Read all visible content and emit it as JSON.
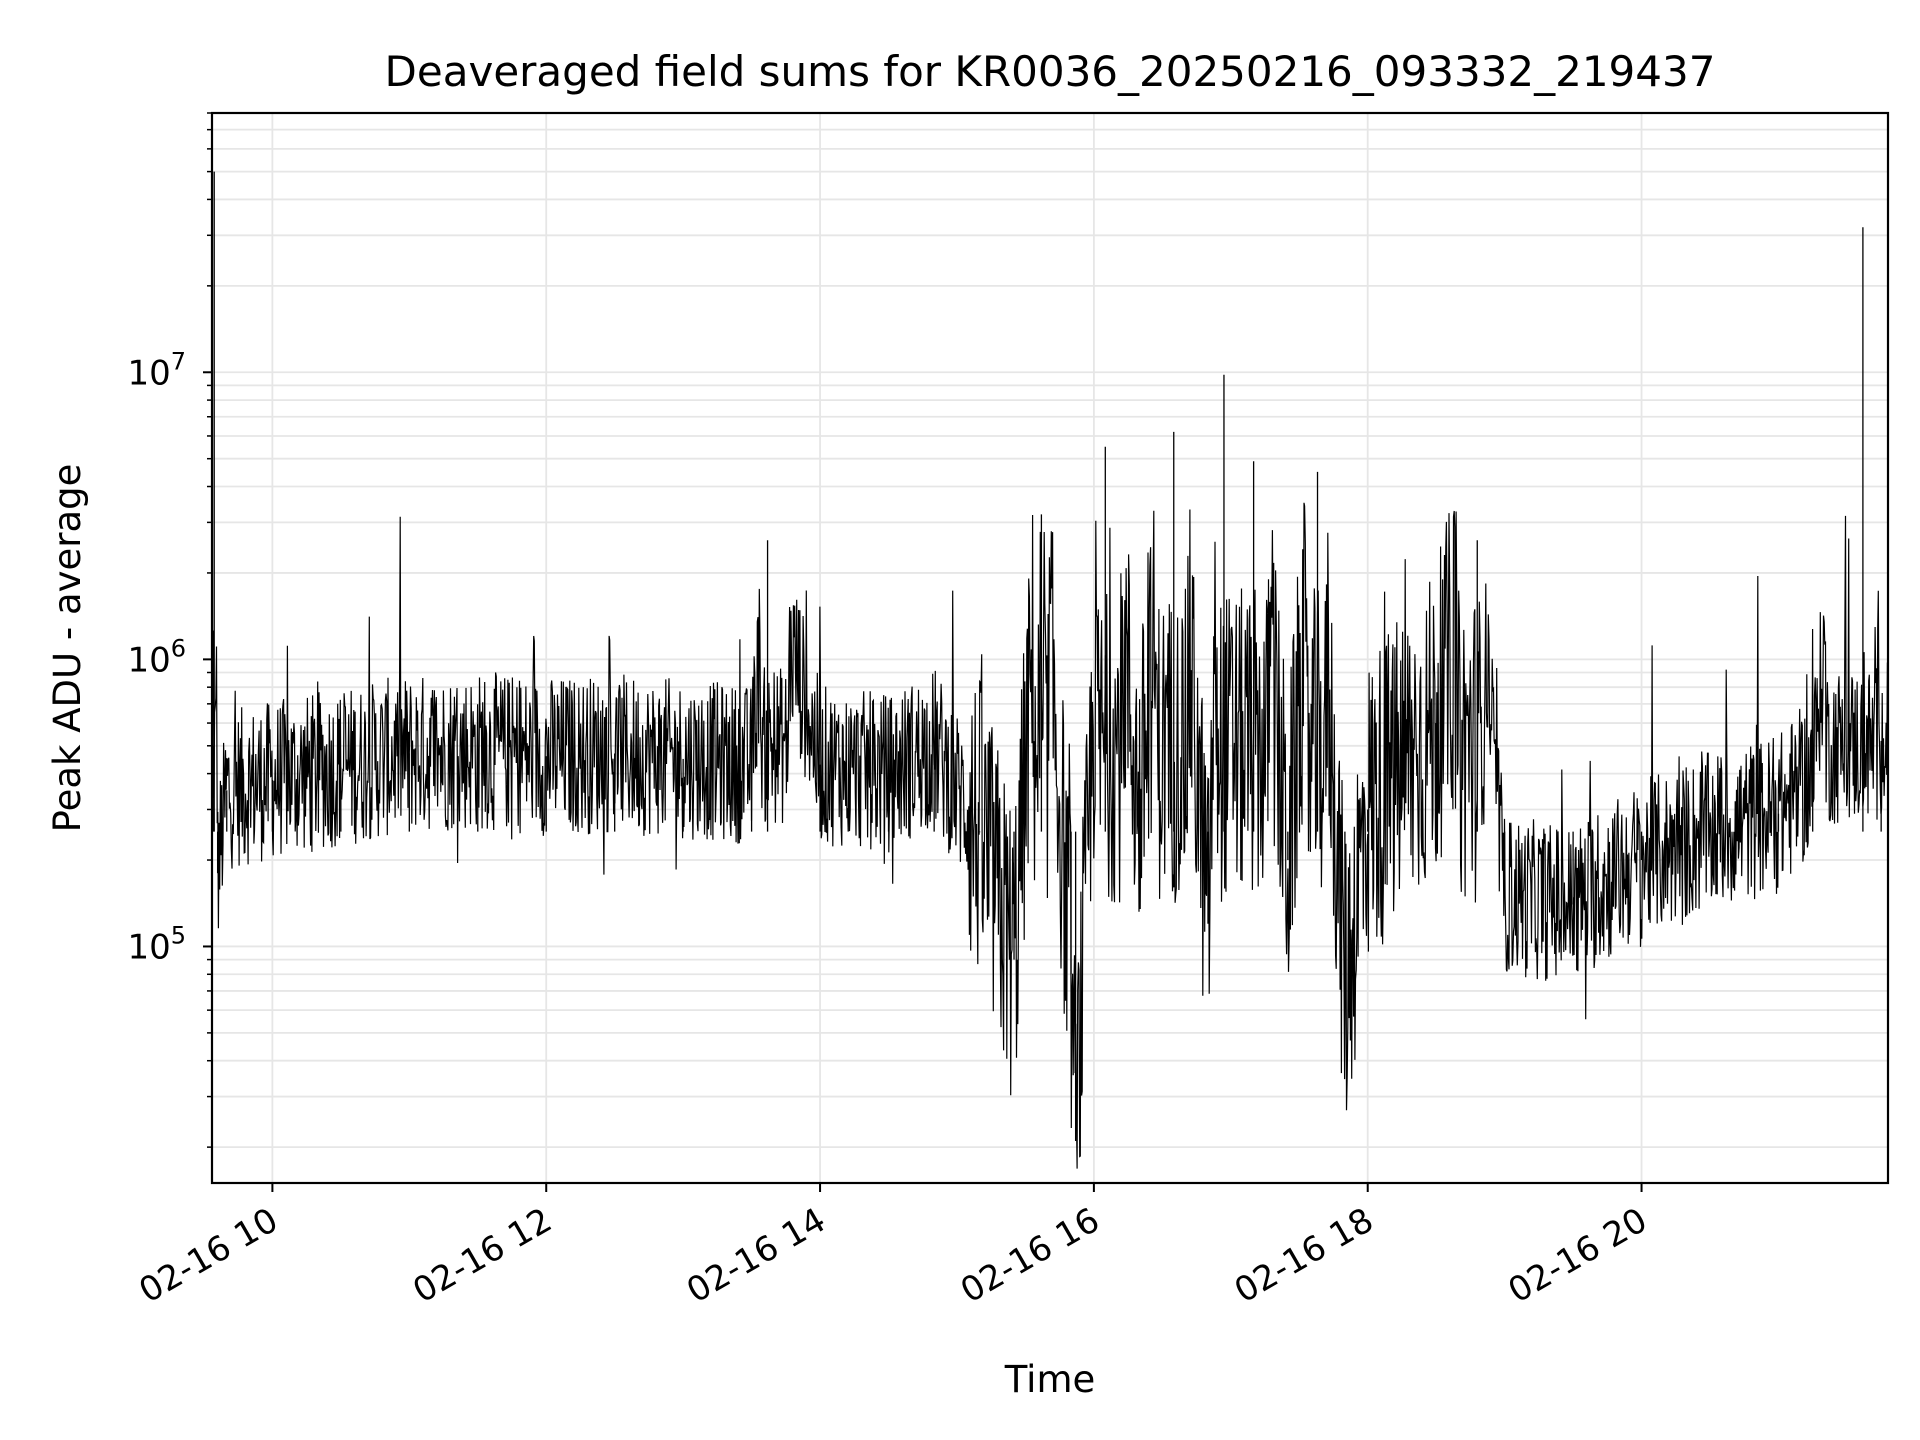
{
  "chart_data": {
    "type": "line",
    "title": "Deaveraged field sums for KR0036_20250216_093332_219437",
    "xlabel": "Time",
    "ylabel": "Peak ADU - average",
    "x_range": [
      "2025-02-16 09:33:32",
      "2025-02-16 21:48:00"
    ],
    "x_tick_labels": [
      "02-16 10",
      "02-16 12",
      "02-16 14",
      "02-16 16",
      "02-16 18",
      "02-16 20"
    ],
    "x_ticks": [
      "2025-02-16 10:00",
      "2025-02-16 12:00",
      "2025-02-16 14:00",
      "2025-02-16 16:00",
      "2025-02-16 18:00",
      "2025-02-16 20:00"
    ],
    "y_scale": "log",
    "ylim": [
      15000,
      80000000
    ],
    "y_ticks": [
      {
        "base": "10",
        "exp": "5",
        "value": 100000
      },
      {
        "base": "10",
        "exp": "6",
        "value": 1000000
      },
      {
        "base": "10",
        "exp": "7",
        "value": 10000000
      }
    ],
    "grid": true,
    "line_color": "#000000",
    "grid_color": "#e6e6e6",
    "series": [
      {
        "description_free": true,
        "points": [
          [
            "2025-02-16 09:34",
            500000
          ],
          [
            "2025-02-16 09:34:30",
            50000000
          ],
          [
            "2025-02-16 09:36",
            180000
          ],
          [
            "2025-02-16 09:40",
            350000
          ],
          [
            "2025-02-16 10:00",
            380000
          ],
          [
            "2025-02-16 10:30",
            420000
          ],
          [
            "2025-02-16 11:00",
            470000
          ],
          [
            "2025-02-16 11:30",
            480000
          ],
          [
            "2025-02-16 12:00",
            460000
          ],
          [
            "2025-02-16 12:30",
            470000
          ],
          [
            "2025-02-16 13:00",
            450000
          ],
          [
            "2025-02-16 13:30",
            430000
          ],
          [
            "2025-02-16 13:37",
            2600000
          ],
          [
            "2025-02-16 14:00",
            430000
          ],
          [
            "2025-02-16 14:30",
            400000
          ],
          [
            "2025-02-16 14:50",
            500000
          ],
          [
            "2025-02-16 15:10",
            250000
          ],
          [
            "2025-02-16 15:25",
            90000
          ],
          [
            "2025-02-16 15:37",
            3200000
          ],
          [
            "2025-02-16 15:50",
            80000
          ],
          [
            "2025-02-16 15:52",
            21000
          ],
          [
            "2025-02-16 16:05",
            5500000
          ],
          [
            "2025-02-16 16:20",
            300000
          ],
          [
            "2025-02-16 16:35",
            6200000
          ],
          [
            "2025-02-16 16:50",
            120000
          ],
          [
            "2025-02-16 16:57",
            9800000
          ],
          [
            "2025-02-16 17:10",
            4900000
          ],
          [
            "2025-02-16 17:25",
            200000
          ],
          [
            "2025-02-16 17:38",
            4500000
          ],
          [
            "2025-02-16 17:50",
            70000
          ],
          [
            "2025-02-16 18:00",
            300000
          ],
          [
            "2025-02-16 18:30",
            600000
          ],
          [
            "2025-02-16 18:48",
            2600000
          ],
          [
            "2025-02-16 19:00",
            150000
          ],
          [
            "2025-02-16 19:30",
            140000
          ],
          [
            "2025-02-16 20:00",
            200000
          ],
          [
            "2025-02-16 20:30",
            250000
          ],
          [
            "2025-02-16 21:00",
            290000
          ],
          [
            "2025-02-16 21:15",
            400000
          ],
          [
            "2025-02-16 21:37",
            32000000
          ],
          [
            "2025-02-16 21:45",
            520000
          ]
        ]
      }
    ]
  }
}
